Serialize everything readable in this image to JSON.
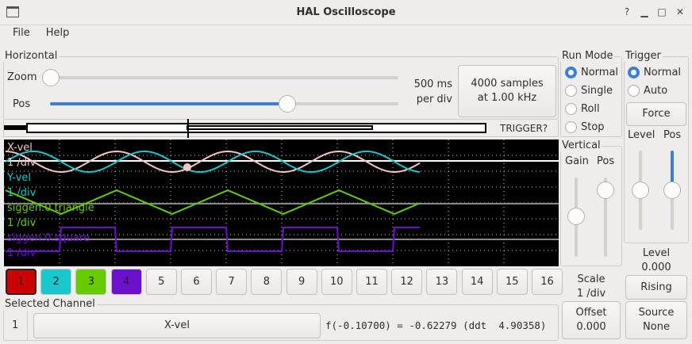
{
  "window": {
    "title": "HAL Oscilloscope"
  },
  "menu": [
    "File",
    "Help"
  ],
  "horizontal": {
    "label": "Horizontal",
    "zoom_label": "Zoom",
    "pos_label": "Pos",
    "zoom_value": 0,
    "pos_value": 0.6,
    "per_div": "500 ms",
    "per_div_unit": "per div",
    "samples": "4000 samples",
    "rate": "at 1.00 kHz",
    "trigger_status": "TRIGGER?"
  },
  "run_mode": {
    "label": "Run Mode",
    "options": [
      "Normal",
      "Single",
      "Roll",
      "Stop"
    ],
    "selected": "Normal"
  },
  "trigger": {
    "label": "Trigger",
    "options": [
      "Normal",
      "Auto"
    ],
    "selected": "Normal",
    "force": "Force",
    "level_label": "Level",
    "pos_label": "Pos",
    "level_text": "Level",
    "level_value": "0.000",
    "edge": "Rising",
    "source_label": "Source",
    "source_value": "None"
  },
  "vertical": {
    "label": "Vertical",
    "gain_label": "Gain",
    "pos_label": "Pos",
    "scale_label": "Scale",
    "scale_value": "1 /div",
    "offset_label": "Offset",
    "offset_value": "0.000"
  },
  "traces": [
    {
      "name": "X-vel",
      "scale": "1 /div",
      "color": "#f7c5c5"
    },
    {
      "name": "Y-vel",
      "scale": "1 /div",
      "color": "#18c8cc"
    },
    {
      "name": "siggen.0.triangle",
      "scale": "1 /div",
      "color": "#66cc00"
    },
    {
      "name": "siggen.0.square",
      "scale": "1 /div",
      "color": "#6b10cc"
    }
  ],
  "channels": [
    {
      "label": "1",
      "color": "#cc0000"
    },
    {
      "label": "2",
      "color": "#18c8cc"
    },
    {
      "label": "3",
      "color": "#66cc00"
    },
    {
      "label": "4",
      "color": "#6b10cc"
    },
    {
      "label": "5"
    },
    {
      "label": "6"
    },
    {
      "label": "7"
    },
    {
      "label": "8"
    },
    {
      "label": "9"
    },
    {
      "label": "10"
    },
    {
      "label": "11"
    },
    {
      "label": "12"
    },
    {
      "label": "13"
    },
    {
      "label": "14"
    },
    {
      "label": "15"
    },
    {
      "label": "16"
    }
  ],
  "selected_channel": {
    "label": "Selected Channel",
    "number": "1",
    "name": "X-vel",
    "readout": "f(-0.10700) = -0.62279 (ddt  4.90358)"
  }
}
